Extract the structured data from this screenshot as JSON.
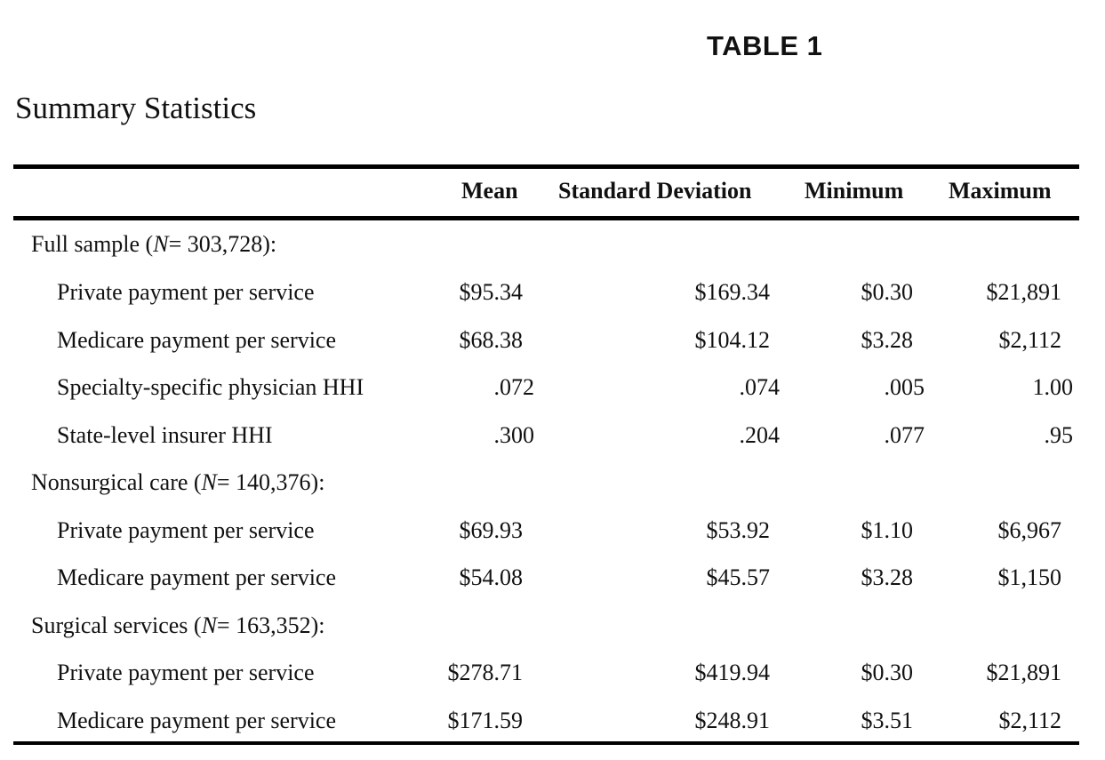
{
  "table_label": "TABLE 1",
  "caption": "Summary Statistics",
  "columns": {
    "mean": "Mean",
    "sd": "Standard Deviation",
    "min": "Minimum",
    "max": "Maximum"
  },
  "groups": [
    {
      "label_pre": "Full sample (",
      "label_n": "N",
      "label_post": "= 303,728):",
      "rows": [
        {
          "label": "Private payment per service",
          "mean": "$95.34",
          "sd": "$169.34",
          "min": "$0.30",
          "max": "$21,891"
        },
        {
          "label": "Medicare payment per service",
          "mean": "$68.38",
          "sd": "$104.12",
          "min": "$3.28",
          "max": "$2,112"
        },
        {
          "label": "Specialty-specific physician HHI",
          "mean": ".072",
          "sd": ".074",
          "min": ".005",
          "max": "1.00"
        },
        {
          "label": "State-level insurer HHI",
          "mean": ".300",
          "sd": ".204",
          "min": ".077",
          "max": ".95"
        }
      ]
    },
    {
      "label_pre": "Nonsurgical care (",
      "label_n": "N",
      "label_post": "= 140,376):",
      "rows": [
        {
          "label": "Private payment per service",
          "mean": "$69.93",
          "sd": "$53.92",
          "min": "$1.10",
          "max": "$6,967"
        },
        {
          "label": "Medicare payment per service",
          "mean": "$54.08",
          "sd": "$45.57",
          "min": "$3.28",
          "max": "$1,150"
        }
      ]
    },
    {
      "label_pre": "Surgical services (",
      "label_n": "N",
      "label_post": "= 163,352):",
      "rows": [
        {
          "label": "Private payment per service",
          "mean": "$278.71",
          "sd": "$419.94",
          "min": "$0.30",
          "max": "$21,891"
        },
        {
          "label": "Medicare payment per service",
          "mean": "$171.59",
          "sd": "$248.91",
          "min": "$3.51",
          "max": "$2,112"
        }
      ]
    }
  ]
}
